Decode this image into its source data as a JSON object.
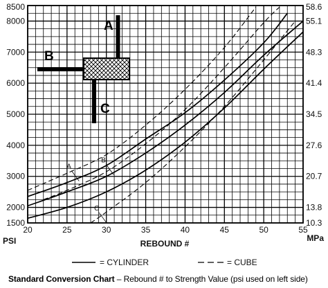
{
  "chart_data": {
    "type": "line",
    "xlabel": "REBOUND #",
    "ylabel_left": "PSI",
    "ylabel_right": "MPa",
    "xlim": [
      20,
      55
    ],
    "ylim": [
      1500,
      8500
    ],
    "x_ticks": [
      20,
      25,
      30,
      35,
      40,
      45,
      50,
      55
    ],
    "y_ticks_left": [
      1500,
      2000,
      3000,
      4000,
      5000,
      6000,
      7000,
      8000,
      8500
    ],
    "y_ticks_right": [
      {
        "label": "10.3",
        "psi": 1500
      },
      {
        "label": "13.8",
        "psi": 2000
      },
      {
        "label": "20.7",
        "psi": 3000
      },
      {
        "label": "27.6",
        "psi": 4000
      },
      {
        "label": "34.5",
        "psi": 5000
      },
      {
        "label": "41.4",
        "psi": 6000
      },
      {
        "label": "48.3",
        "psi": 7000
      },
      {
        "label": "55.1",
        "psi": 8000
      },
      {
        "label": "58.6",
        "psi": 8500
      }
    ],
    "grid": true,
    "series": [
      {
        "name": "CYLINDER",
        "curve": "A",
        "style": "solid",
        "x": [
          20,
          25,
          30,
          35,
          40,
          45,
          50,
          53
        ],
        "y": [
          2350,
          2800,
          3350,
          4200,
          5050,
          6100,
          7300,
          8250
        ]
      },
      {
        "name": "CYLINDER",
        "curve": "B",
        "style": "solid",
        "x": [
          20,
          25,
          30,
          35,
          40,
          45,
          50,
          55
        ],
        "y": [
          2050,
          2500,
          3000,
          3750,
          4650,
          5700,
          6900,
          8000
        ]
      },
      {
        "name": "CYLINDER",
        "curve": "C",
        "style": "solid",
        "x": [
          20,
          25,
          30,
          35,
          40,
          45,
          50,
          55
        ],
        "y": [
          1650,
          2000,
          2500,
          3200,
          4100,
          5200,
          6450,
          7650
        ]
      },
      {
        "name": "CUBE",
        "curve": "A",
        "style": "dashed",
        "x": [
          20,
          25,
          30,
          35,
          40,
          45,
          49
        ],
        "y": [
          2550,
          3100,
          3700,
          4650,
          5800,
          7150,
          8450
        ]
      },
      {
        "name": "CUBE",
        "curve": "B",
        "style": "dashed",
        "x": [
          22,
          25,
          30,
          35,
          40,
          45,
          50,
          52
        ],
        "y": [
          2250,
          2550,
          3150,
          4050,
          5150,
          6500,
          7950,
          8450
        ]
      },
      {
        "name": "CUBE",
        "curve": "C",
        "style": "dashed",
        "x": [
          28,
          30,
          35,
          40,
          45,
          50,
          54
        ],
        "y": [
          1500,
          1850,
          2800,
          3950,
          5250,
          6750,
          8000
        ]
      }
    ],
    "curve_tags": [
      {
        "text": "A",
        "x": 25.3,
        "y": 3250
      },
      {
        "text": "B",
        "x": 29.7,
        "y": 3450
      },
      {
        "text": "C",
        "x": 28.8,
        "y": 1900
      }
    ],
    "callouts": [
      "A",
      "B",
      "C"
    ],
    "legend": {
      "position": "bottom",
      "items": [
        {
          "label": "= CYLINDER",
          "style": "solid"
        },
        {
          "label": "= CUBE",
          "style": "dashed"
        }
      ]
    }
  },
  "caption": {
    "title": "Standard Conversion Chart",
    "text": " – Rebound # to Strength Value (psi used on left side)"
  }
}
